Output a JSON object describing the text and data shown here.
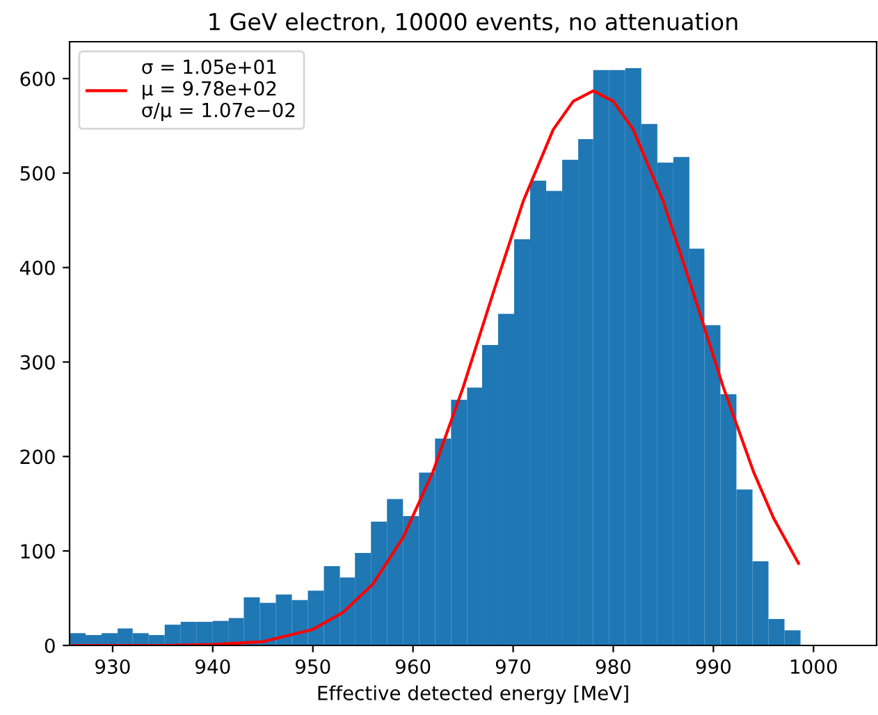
{
  "chart_data": {
    "type": "histogram",
    "title": "1 GeV electron, 10000 events, no attenuation",
    "xlabel": "Effective detected energy [MeV]",
    "bins": [
      925.7,
      927.3,
      928.9,
      930.5,
      932.0,
      933.6,
      935.2,
      936.8,
      938.4,
      940.0,
      941.6,
      943.1,
      944.7,
      946.3,
      947.9,
      949.5,
      951.1,
      952.7,
      954.2,
      955.8,
      957.4,
      959.0,
      960.6,
      962.2,
      963.8,
      965.4,
      966.9,
      968.5,
      970.1,
      971.7,
      973.3,
      974.9,
      976.5,
      978.0,
      979.6,
      981.2,
      982.8,
      984.4,
      986.0,
      987.6,
      989.1,
      990.7,
      992.3,
      993.9,
      995.5,
      997.1,
      998.7
    ],
    "values": [
      13,
      11,
      13,
      18,
      13,
      11,
      22,
      25,
      25,
      26,
      29,
      51,
      45,
      54,
      48,
      58,
      84,
      72,
      98,
      131,
      155,
      137,
      183,
      219,
      260,
      273,
      318,
      351,
      430,
      492,
      481,
      514,
      536,
      609,
      609,
      611,
      552,
      511,
      517,
      420,
      339,
      266,
      165,
      89,
      28,
      16
    ],
    "color": "#1f77b4",
    "series": [
      {
        "type": "line",
        "name": "σ = 1.05e+01\nμ = 9.78e+02\nσ/μ = 1.07e−02",
        "color": "#ff0000",
        "x": [
          926,
          930,
          935,
          940,
          945,
          950,
          953,
          956,
          959,
          962,
          965,
          968,
          971,
          974,
          976,
          978,
          980,
          982,
          985,
          988,
          991,
          994,
          996,
          998.5
        ],
        "values": [
          0,
          0,
          0,
          1,
          4,
          17,
          35,
          65,
          114,
          184,
          273,
          373,
          470,
          546,
          576,
          587,
          576,
          546,
          470,
          373,
          273,
          184,
          135,
          87
        ]
      }
    ],
    "xlim": [
      925.7,
      1006.3
    ],
    "ylim": [
      0,
      639
    ],
    "xticks": [
      930,
      940,
      950,
      960,
      970,
      980,
      990,
      1000
    ],
    "yticks": [
      0,
      100,
      200,
      300,
      400,
      500,
      600
    ],
    "legend": "top left",
    "grid": false
  }
}
